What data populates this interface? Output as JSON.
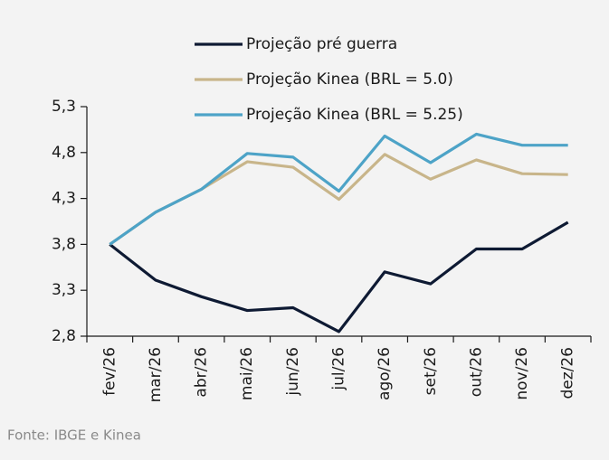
{
  "chart_data": {
    "type": "line",
    "categories": [
      "fev/26",
      "mar/26",
      "abr/26",
      "mai/26",
      "jun/26",
      "jul/26",
      "ago/26",
      "set/26",
      "out/26",
      "nov/26",
      "dez/26"
    ],
    "series": [
      {
        "name": "Projeção pré guerra",
        "color": "#0e1a33",
        "values": [
          3.8,
          3.41,
          3.23,
          3.08,
          3.11,
          2.85,
          3.5,
          3.37,
          3.75,
          3.75,
          4.04
        ]
      },
      {
        "name": "Projeção Kinea (BRL = 5.0)",
        "color": "#c8b58a",
        "values": [
          3.8,
          4.15,
          4.4,
          4.7,
          4.64,
          4.29,
          4.78,
          4.51,
          4.72,
          4.57,
          4.56
        ]
      },
      {
        "name": "Projeção Kinea (BRL = 5.25)",
        "color": "#4da3c7",
        "values": [
          3.8,
          4.15,
          4.4,
          4.79,
          4.75,
          4.38,
          4.98,
          4.69,
          5.0,
          4.88,
          4.88
        ]
      }
    ],
    "ylim": [
      2.8,
      5.3
    ],
    "yticks": [
      {
        "value": 2.8,
        "label": "2,8"
      },
      {
        "value": 3.3,
        "label": "3,3"
      },
      {
        "value": 3.8,
        "label": "3,8"
      },
      {
        "value": 4.3,
        "label": "4,3"
      },
      {
        "value": 4.8,
        "label": "4,8"
      },
      {
        "value": 5.3,
        "label": "5,3"
      }
    ],
    "legend": "top",
    "source": "Fonte: IBGE e Kinea"
  }
}
